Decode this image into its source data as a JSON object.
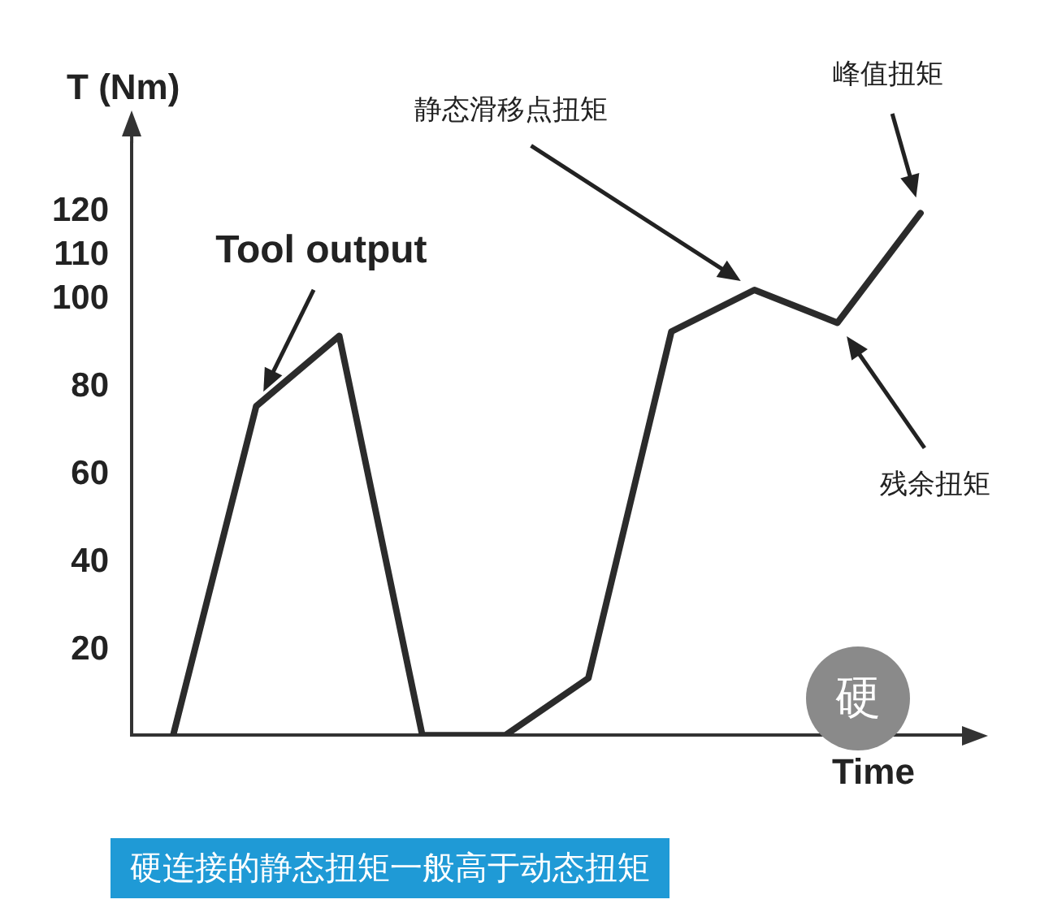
{
  "chart_data": {
    "type": "line",
    "xlabel": "Time",
    "ylabel": "T (Nm)",
    "categories": [
      null,
      null,
      null,
      null,
      null,
      null,
      null,
      null,
      null,
      null
    ],
    "series": [
      {
        "color": "#2b2b2b",
        "values": [
          0,
          75,
          91,
          0,
          0,
          13,
          92,
          101.5,
          94,
          119
        ]
      }
    ],
    "ylim": [
      0,
      135
    ],
    "yticks": [
      20,
      40,
      60,
      80,
      100,
      110,
      120
    ],
    "grid": false,
    "legend": false,
    "marker": "none",
    "line_style": "solid",
    "annotations": [
      "Tool output",
      "静态滑移点扭矩",
      "峰值扭矩",
      "残余扭矩",
      "硬",
      "硬连接的静态扭矩一般高于动态扭矩"
    ]
  }
}
